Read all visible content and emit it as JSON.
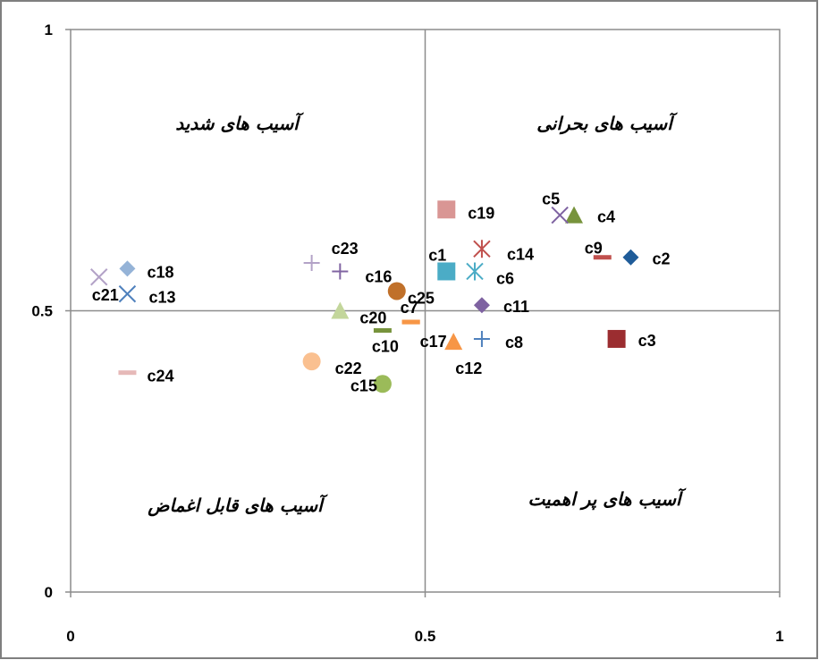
{
  "chart_data": {
    "type": "scatter",
    "xlim": [
      0,
      1
    ],
    "ylim": [
      0,
      1
    ],
    "x_ticks": [
      "0",
      "0.5",
      "1"
    ],
    "y_ticks": [
      "0",
      "0.5",
      "1"
    ],
    "grid": "quadrant lines at 0.5",
    "quadrant_labels": {
      "top_left": "آسیب های شدید",
      "top_right": "آسیب های بحرانی",
      "bottom_left": "آسیب های قابل اغماض",
      "bottom_right": "آسیب های پر اهمیت"
    },
    "points": [
      {
        "label": "c1",
        "x": 0.53,
        "y": 0.57,
        "marker": "square",
        "color": "#4BACC6"
      },
      {
        "label": "c2",
        "x": 0.79,
        "y": 0.595,
        "marker": "diamond",
        "color": "#1F5C99"
      },
      {
        "label": "c3",
        "x": 0.77,
        "y": 0.45,
        "marker": "square",
        "color": "#9B2D30"
      },
      {
        "label": "c4",
        "x": 0.71,
        "y": 0.67,
        "marker": "triangle",
        "color": "#77933C"
      },
      {
        "label": "c5",
        "x": 0.69,
        "y": 0.67,
        "marker": "x",
        "color": "#7E62A1"
      },
      {
        "label": "c6",
        "x": 0.57,
        "y": 0.57,
        "marker": "star",
        "color": "#4BACC6"
      },
      {
        "label": "c7",
        "x": 0.48,
        "y": 0.48,
        "marker": "dash",
        "color": "#F79646"
      },
      {
        "label": "c8",
        "x": 0.58,
        "y": 0.45,
        "marker": "plus",
        "color": "#4F81BD"
      },
      {
        "label": "c9",
        "x": 0.75,
        "y": 0.595,
        "marker": "dash",
        "color": "#C0504D"
      },
      {
        "label": "c10",
        "x": 0.44,
        "y": 0.465,
        "marker": "dash",
        "color": "#77933C"
      },
      {
        "label": "c11",
        "x": 0.58,
        "y": 0.51,
        "marker": "diamond",
        "color": "#7E62A1"
      },
      {
        "label": "c12",
        "x": 0.54,
        "y": 0.445,
        "marker": "triangle",
        "color": "#F79646"
      },
      {
        "label": "c13",
        "x": 0.08,
        "y": 0.53,
        "marker": "x",
        "color": "#4F81BD"
      },
      {
        "label": "c14",
        "x": 0.58,
        "y": 0.61,
        "marker": "star",
        "color": "#C0504D"
      },
      {
        "label": "c15",
        "x": 0.44,
        "y": 0.37,
        "marker": "circle",
        "color": "#9BBB59"
      },
      {
        "label": "c16",
        "x": 0.38,
        "y": 0.57,
        "marker": "plus",
        "color": "#8064A2"
      },
      {
        "label": "c17",
        "x": 0.48,
        "y": 0.48,
        "marker": "dash",
        "color": "#F79646"
      },
      {
        "label": "c18",
        "x": 0.08,
        "y": 0.575,
        "marker": "diamond",
        "color": "#95B3D7"
      },
      {
        "label": "c19",
        "x": 0.53,
        "y": 0.68,
        "marker": "square",
        "color": "#D99694"
      },
      {
        "label": "c20",
        "x": 0.38,
        "y": 0.5,
        "marker": "triangle",
        "color": "#C3D69B"
      },
      {
        "label": "c21",
        "x": 0.04,
        "y": 0.56,
        "marker": "x",
        "color": "#B3A2C7"
      },
      {
        "label": "c22",
        "x": 0.34,
        "y": 0.41,
        "marker": "circle",
        "color": "#FAC090"
      },
      {
        "label": "c23",
        "x": 0.34,
        "y": 0.585,
        "marker": "plus",
        "color": "#B3A2C7"
      },
      {
        "label": "c24",
        "x": 0.08,
        "y": 0.39,
        "marker": "dash",
        "color": "#E6B9B8"
      },
      {
        "label": "c25",
        "x": 0.46,
        "y": 0.535,
        "marker": "circle",
        "color": "#C0702A"
      }
    ]
  }
}
